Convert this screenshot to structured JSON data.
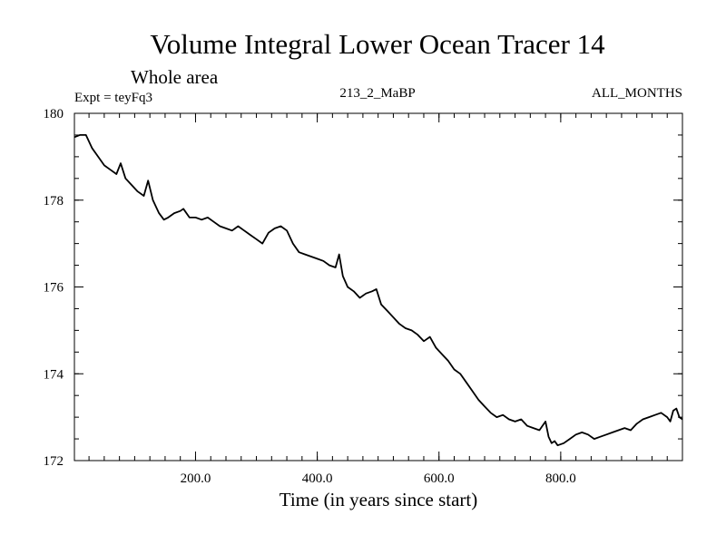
{
  "chart_data": {
    "type": "line",
    "title": "Volume Integral Lower Ocean Tracer 14",
    "subtitle": "Whole area",
    "experiment_label": "Expt = teyFq3",
    "center_label": "213_2_MaBP",
    "right_label": "ALL_MONTHS",
    "xlabel": "Time (in years since start)",
    "ylabel": "",
    "xlim": [
      1,
      1000
    ],
    "ylim": [
      172,
      180
    ],
    "x_ticks": [
      200,
      400,
      600,
      800
    ],
    "x_tick_labels": [
      "200.0",
      "400.0",
      "600.0",
      "800.0"
    ],
    "x_minor_step": 25,
    "y_ticks": [
      172,
      174,
      176,
      178,
      180
    ],
    "y_tick_labels": [
      "172",
      "174",
      "176",
      "178",
      "180"
    ],
    "y_minor_step": 0.5,
    "grid": false,
    "line_color": "#000000",
    "series": [
      {
        "name": "Lower Ocean Tracer 14",
        "x": [
          1,
          10,
          20,
          30,
          40,
          50,
          60,
          70,
          77,
          85,
          95,
          105,
          115,
          122,
          130,
          140,
          148,
          155,
          165,
          175,
          180,
          190,
          200,
          210,
          220,
          230,
          240,
          250,
          260,
          270,
          280,
          290,
          300,
          310,
          320,
          330,
          340,
          350,
          360,
          370,
          380,
          390,
          400,
          410,
          420,
          430,
          436,
          442,
          450,
          460,
          470,
          480,
          490,
          497,
          505,
          515,
          525,
          535,
          545,
          555,
          565,
          575,
          585,
          595,
          605,
          615,
          625,
          635,
          645,
          655,
          665,
          675,
          685,
          695,
          705,
          715,
          725,
          735,
          745,
          755,
          765,
          775,
          780,
          785,
          790,
          795,
          805,
          815,
          825,
          835,
          845,
          855,
          865,
          875,
          885,
          895,
          905,
          915,
          925,
          935,
          945,
          955,
          965,
          975,
          980,
          985,
          990,
          995,
          1000
        ],
        "y": [
          179.45,
          179.5,
          179.5,
          179.2,
          179.0,
          178.8,
          178.7,
          178.6,
          178.85,
          178.5,
          178.35,
          178.2,
          178.1,
          178.45,
          178.0,
          177.7,
          177.55,
          177.6,
          177.7,
          177.75,
          177.8,
          177.6,
          177.6,
          177.55,
          177.6,
          177.5,
          177.4,
          177.35,
          177.3,
          177.4,
          177.3,
          177.2,
          177.1,
          177.0,
          177.25,
          177.35,
          177.4,
          177.3,
          177.0,
          176.8,
          176.75,
          176.7,
          176.65,
          176.6,
          176.5,
          176.45,
          176.75,
          176.25,
          176.0,
          175.9,
          175.75,
          175.85,
          175.9,
          175.95,
          175.6,
          175.45,
          175.3,
          175.15,
          175.05,
          175.0,
          174.9,
          174.75,
          174.85,
          174.6,
          174.45,
          174.3,
          174.1,
          174.0,
          173.8,
          173.6,
          173.4,
          173.25,
          173.1,
          173.0,
          173.05,
          172.95,
          172.9,
          172.95,
          172.8,
          172.75,
          172.7,
          172.9,
          172.55,
          172.4,
          172.45,
          172.35,
          172.4,
          172.5,
          172.6,
          172.65,
          172.6,
          172.5,
          172.55,
          172.6,
          172.65,
          172.7,
          172.75,
          172.7,
          172.85,
          172.95,
          173.0,
          173.05,
          173.1,
          173.0,
          172.9,
          173.15,
          173.2,
          173.0,
          172.95
        ]
      }
    ]
  }
}
